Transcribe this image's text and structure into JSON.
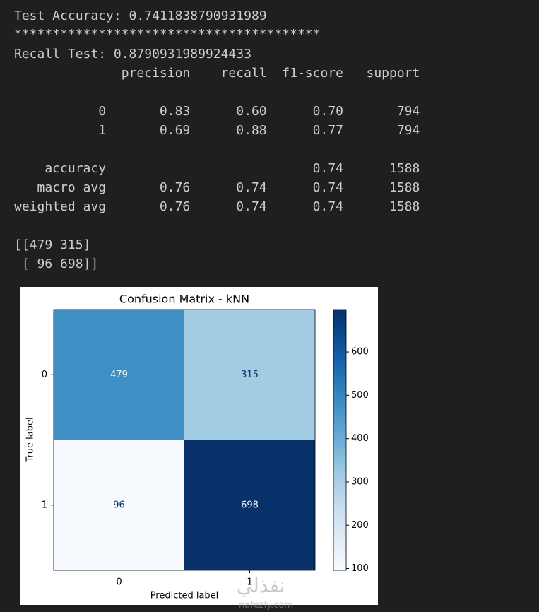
{
  "output": {
    "lines": [
      "Test Accuracy: 0.7411838790931989",
      "****************************************",
      "Recall Test: 0.8790931989924433"
    ],
    "report": {
      "header": "              precision    recall  f1-score   support",
      "rows": [
        "           0       0.83      0.60      0.70       794",
        "           1       0.69      0.88      0.77       794",
        "    accuracy                           0.74      1588",
        "   macro avg       0.76      0.74      0.74      1588",
        "weighted avg       0.76      0.74      0.74      1588"
      ]
    },
    "matrix": [
      "[[479 315]",
      " [ 96 698]]"
    ]
  },
  "chart_data": {
    "type": "heatmap",
    "title": "Confusion Matrix - kNN",
    "x_label": "Predicted label",
    "y_label": "True label",
    "x_categories": [
      "0",
      "1"
    ],
    "y_categories": [
      "0",
      "1"
    ],
    "values": [
      [
        479,
        315
      ],
      [
        96,
        698
      ]
    ],
    "colormap": "Blues",
    "clim": [
      96,
      698
    ],
    "cticks": [
      100,
      200,
      300,
      400,
      500,
      600
    ]
  },
  "watermark": [
    "نفذلي",
    "nafezly.com"
  ]
}
